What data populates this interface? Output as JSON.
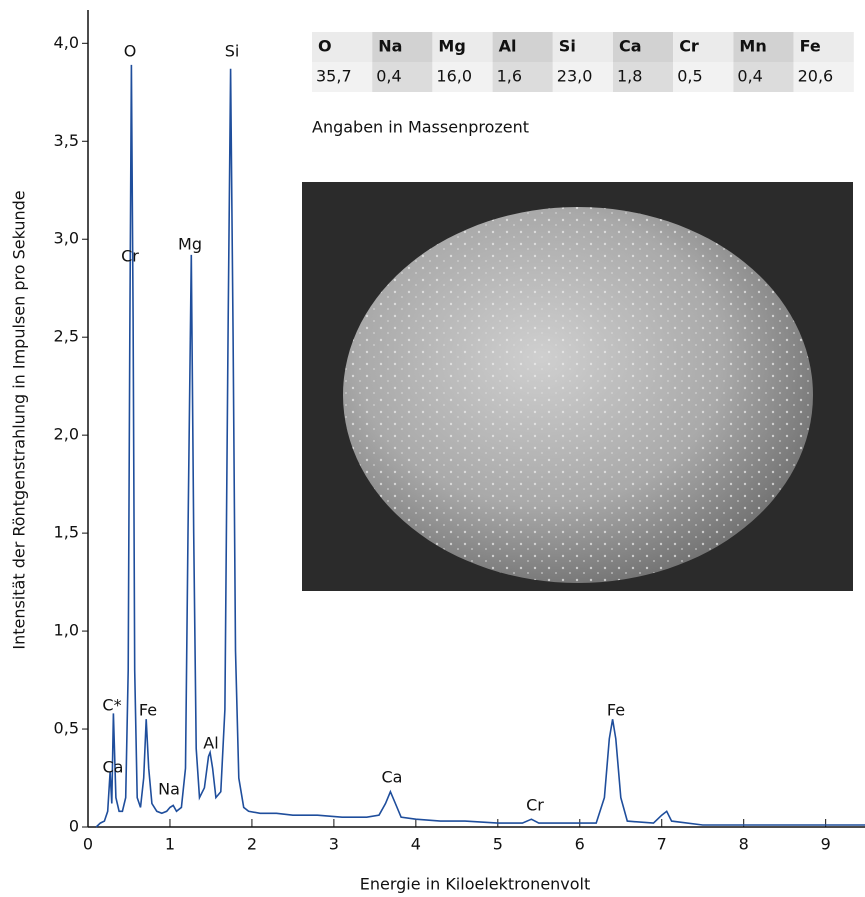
{
  "chart_data": {
    "type": "line",
    "y_label": "Intensität der Röntgenstrahlung in Impulsen pro Sekunde",
    "x_label": "Energie in Kiloelektronenvolt",
    "xlim": [
      0,
      9.48
    ],
    "ylim": [
      0,
      4.17
    ],
    "xticks": [
      0,
      1,
      2,
      3,
      4,
      5,
      6,
      7,
      8,
      9
    ],
    "yticks": [
      0,
      {
        "value": 0.5,
        "label": "0,5"
      },
      {
        "value": 1.0,
        "label": "1,0"
      },
      {
        "value": 1.5,
        "label": "1,5"
      },
      {
        "value": 2.0,
        "label": "2,0"
      },
      {
        "value": 2.5,
        "label": "2,5"
      },
      {
        "value": 3.0,
        "label": "3,0"
      },
      {
        "value": 3.5,
        "label": "3,5"
      },
      {
        "value": 4.0,
        "label": "4,0"
      }
    ],
    "color": "#1f4e9c",
    "x": [
      0.1,
      0.15,
      0.2,
      0.24,
      0.27,
      0.29,
      0.31,
      0.34,
      0.38,
      0.42,
      0.46,
      0.49,
      0.51,
      0.53,
      0.55,
      0.57,
      0.6,
      0.64,
      0.68,
      0.71,
      0.74,
      0.78,
      0.84,
      0.9,
      0.96,
      1.0,
      1.04,
      1.08,
      1.14,
      1.19,
      1.22,
      1.26,
      1.29,
      1.32,
      1.36,
      1.42,
      1.47,
      1.49,
      1.52,
      1.56,
      1.62,
      1.67,
      1.71,
      1.74,
      1.77,
      1.8,
      1.84,
      1.9,
      1.96,
      2.1,
      2.3,
      2.5,
      2.8,
      3.1,
      3.4,
      3.55,
      3.63,
      3.69,
      3.75,
      3.82,
      4.0,
      4.3,
      4.6,
      5.0,
      5.3,
      5.41,
      5.5,
      5.9,
      6.2,
      6.3,
      6.36,
      6.4,
      6.44,
      6.5,
      6.58,
      6.9,
      7.0,
      7.06,
      7.12,
      7.5,
      8.0,
      8.5,
      9.0,
      9.48
    ],
    "values": [
      0.0,
      0.02,
      0.03,
      0.08,
      0.28,
      0.12,
      0.58,
      0.15,
      0.08,
      0.08,
      0.15,
      0.8,
      2.5,
      3.89,
      2.6,
      0.8,
      0.15,
      0.1,
      0.25,
      0.55,
      0.3,
      0.12,
      0.08,
      0.07,
      0.08,
      0.1,
      0.11,
      0.08,
      0.1,
      0.3,
      1.5,
      2.92,
      1.5,
      0.4,
      0.15,
      0.2,
      0.36,
      0.38,
      0.3,
      0.15,
      0.18,
      0.6,
      2.6,
      3.87,
      2.5,
      0.9,
      0.25,
      0.1,
      0.08,
      0.07,
      0.07,
      0.06,
      0.06,
      0.05,
      0.05,
      0.06,
      0.12,
      0.18,
      0.12,
      0.05,
      0.04,
      0.03,
      0.03,
      0.02,
      0.02,
      0.04,
      0.02,
      0.02,
      0.02,
      0.15,
      0.45,
      0.55,
      0.45,
      0.15,
      0.03,
      0.02,
      0.06,
      0.08,
      0.03,
      0.01,
      0.01,
      0.01,
      0.01,
      0.01
    ],
    "annotations": [
      "O",
      "Si",
      "Cr",
      "Mg",
      "C*",
      "Fe",
      "Ca",
      "Al",
      "Na",
      "Ca",
      "Cr",
      "Fe"
    ]
  },
  "table": {
    "headers": [
      "O",
      "Na",
      "Mg",
      "Al",
      "Si",
      "Ca",
      "Cr",
      "Mn",
      "Fe"
    ],
    "values": [
      "35,7",
      "0,4",
      "16,0",
      "1,6",
      "23,0",
      "1,8",
      "0,5",
      "0,4",
      "20,6"
    ]
  },
  "note": "Angaben in Massenprozent"
}
